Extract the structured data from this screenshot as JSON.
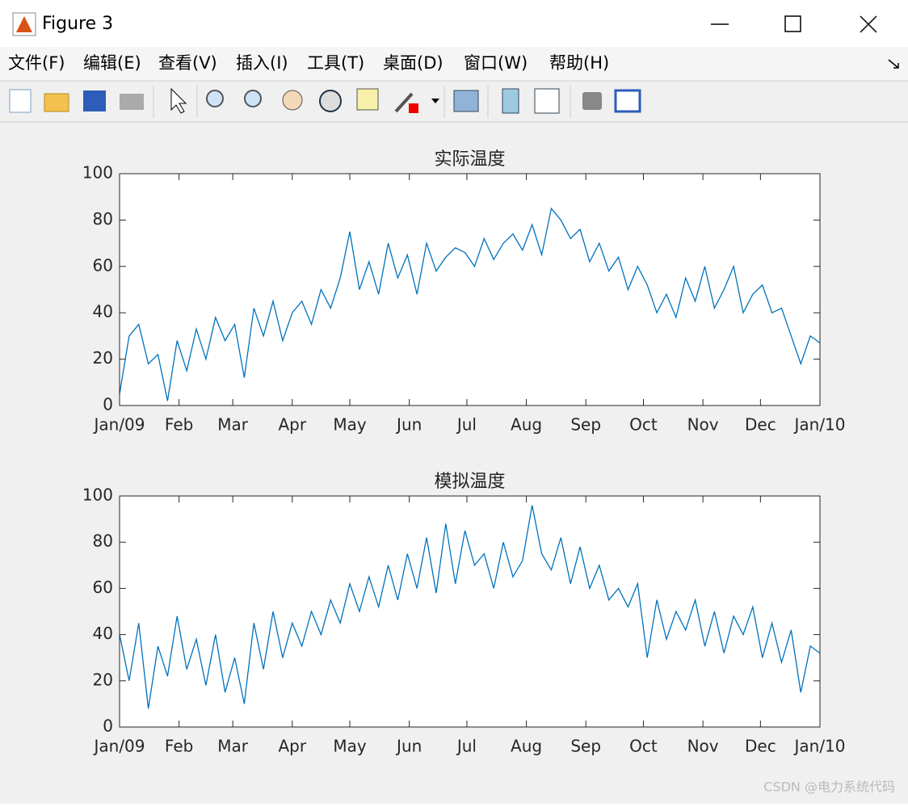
{
  "window": {
    "title": "Figure 3",
    "menu": [
      "文件(F)",
      "编辑(E)",
      "查看(V)",
      "插入(I)",
      "工具(T)",
      "桌面(D)",
      "窗口(W)",
      "帮助(H)"
    ],
    "watermark": "CSDN @电力系统代码"
  },
  "chart_data": [
    {
      "type": "line",
      "title": "实际温度",
      "color": "#0072bd",
      "x": [
        0,
        5,
        10,
        15,
        20,
        25,
        30,
        35,
        40,
        45,
        50,
        55,
        60,
        65,
        70,
        75,
        80,
        85,
        90,
        95,
        100,
        105,
        110,
        115,
        120,
        125,
        130,
        135,
        140,
        145,
        150,
        155,
        160,
        165,
        170,
        175,
        180,
        185,
        190,
        195,
        200,
        205,
        210,
        215,
        220,
        225,
        230,
        235,
        240,
        245,
        250,
        255,
        260,
        265,
        270,
        275,
        280,
        285,
        290,
        295,
        300,
        305,
        310,
        315,
        320,
        325,
        330,
        335,
        340,
        345,
        350,
        355,
        360,
        365
      ],
      "values": [
        5,
        30,
        35,
        18,
        22,
        2,
        28,
        15,
        33,
        20,
        38,
        28,
        35,
        12,
        42,
        30,
        45,
        28,
        40,
        45,
        35,
        50,
        42,
        55,
        75,
        50,
        62,
        48,
        70,
        55,
        65,
        48,
        70,
        58,
        64,
        68,
        66,
        60,
        72,
        63,
        70,
        74,
        67,
        78,
        65,
        85,
        80,
        72,
        76,
        62,
        70,
        58,
        64,
        50,
        60,
        52,
        40,
        48,
        38,
        55,
        45,
        60,
        42,
        50,
        60,
        40,
        48,
        52,
        40,
        42,
        30,
        18,
        30,
        27
      ],
      "xlim": [
        0,
        365
      ],
      "xticks": [
        {
          "value": 0,
          "label": "Jan/09"
        },
        {
          "value": 31,
          "label": "Feb"
        },
        {
          "value": 59,
          "label": "Mar"
        },
        {
          "value": 90,
          "label": "Apr"
        },
        {
          "value": 120,
          "label": "May"
        },
        {
          "value": 151,
          "label": "Jun"
        },
        {
          "value": 181,
          "label": "Jul"
        },
        {
          "value": 212,
          "label": "Aug"
        },
        {
          "value": 243,
          "label": "Sep"
        },
        {
          "value": 273,
          "label": "Oct"
        },
        {
          "value": 304,
          "label": "Nov"
        },
        {
          "value": 334,
          "label": "Dec"
        },
        {
          "value": 365,
          "label": "Jan/10"
        }
      ],
      "ylim": [
        0,
        100
      ],
      "yticks": [
        0,
        20,
        40,
        60,
        80,
        100
      ]
    },
    {
      "type": "line",
      "title": "模拟温度",
      "color": "#0072bd",
      "x": [
        0,
        5,
        10,
        15,
        20,
        25,
        30,
        35,
        40,
        45,
        50,
        55,
        60,
        65,
        70,
        75,
        80,
        85,
        90,
        95,
        100,
        105,
        110,
        115,
        120,
        125,
        130,
        135,
        140,
        145,
        150,
        155,
        160,
        165,
        170,
        175,
        180,
        185,
        190,
        195,
        200,
        205,
        210,
        215,
        220,
        225,
        230,
        235,
        240,
        245,
        250,
        255,
        260,
        265,
        270,
        275,
        280,
        285,
        290,
        295,
        300,
        305,
        310,
        315,
        320,
        325,
        330,
        335,
        340,
        345,
        350,
        355,
        360,
        365
      ],
      "values": [
        40,
        20,
        45,
        8,
        35,
        22,
        48,
        25,
        38,
        18,
        40,
        15,
        30,
        10,
        45,
        25,
        50,
        30,
        45,
        35,
        50,
        40,
        55,
        45,
        62,
        50,
        65,
        52,
        70,
        55,
        75,
        60,
        82,
        58,
        88,
        62,
        85,
        70,
        75,
        60,
        80,
        65,
        72,
        96,
        75,
        68,
        82,
        62,
        78,
        60,
        70,
        55,
        60,
        52,
        62,
        30,
        55,
        38,
        50,
        42,
        55,
        35,
        50,
        32,
        48,
        40,
        52,
        30,
        45,
        28,
        42,
        15,
        35,
        32
      ],
      "xlim": [
        0,
        365
      ],
      "xticks": [
        {
          "value": 0,
          "label": "Jan/09"
        },
        {
          "value": 31,
          "label": "Feb"
        },
        {
          "value": 59,
          "label": "Mar"
        },
        {
          "value": 90,
          "label": "Apr"
        },
        {
          "value": 120,
          "label": "May"
        },
        {
          "value": 151,
          "label": "Jun"
        },
        {
          "value": 181,
          "label": "Jul"
        },
        {
          "value": 212,
          "label": "Aug"
        },
        {
          "value": 243,
          "label": "Sep"
        },
        {
          "value": 273,
          "label": "Oct"
        },
        {
          "value": 304,
          "label": "Nov"
        },
        {
          "value": 334,
          "label": "Dec"
        },
        {
          "value": 365,
          "label": "Jan/10"
        }
      ],
      "ylim": [
        0,
        100
      ],
      "yticks": [
        0,
        20,
        40,
        60,
        80,
        100
      ]
    }
  ]
}
